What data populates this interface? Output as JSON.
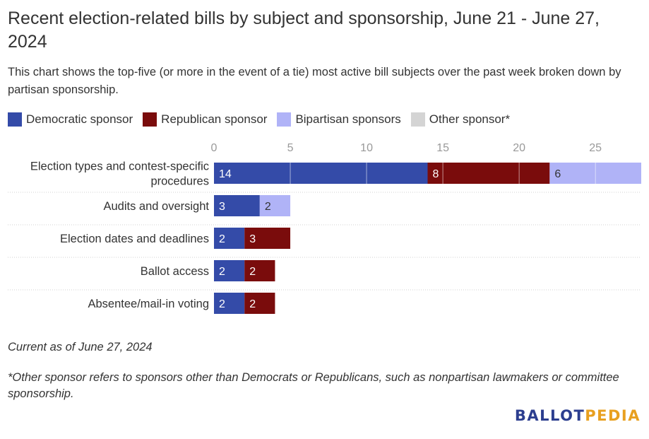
{
  "title": "Recent election-related bills by subject and sponsorship, June 21 - June 27, 2024",
  "subtitle": "This chart shows the top-five (or more in the event of a tie) most active bill subjects over the past week broken down by partisan sponsorship.",
  "legend": [
    {
      "label": "Democratic sponsor",
      "color": "#344ba8"
    },
    {
      "label": "Republican sponsor",
      "color": "#7a0c0c"
    },
    {
      "label": "Bipartisan sponsors",
      "color": "#b0b3f7"
    },
    {
      "label": "Other sponsor*",
      "color": "#d4d4d4"
    }
  ],
  "notes": {
    "current_as_of": "Current as of June 27, 2024",
    "footnote": "*Other sponsor refers to sponsors other than Democrats or Republicans, such as nonpartisan lawmakers or committee sponsorship."
  },
  "logo": {
    "part1": "BALLOT",
    "part2": "PEDIA",
    "color1": "#2c3e8f",
    "color2": "#e8a020"
  },
  "chart_data": {
    "type": "bar",
    "orientation": "horizontal",
    "stacked": true,
    "categories": [
      "Election types and contest-specific procedures",
      "Audits and oversight",
      "Election dates and deadlines",
      "Ballot access",
      "Absentee/mail-in voting"
    ],
    "category_lines": [
      [
        "Election types and contest-specific",
        "procedures"
      ],
      [
        "Audits and oversight"
      ],
      [
        "Election dates and deadlines"
      ],
      [
        "Ballot access"
      ],
      [
        "Absentee/mail-in voting"
      ]
    ],
    "series": [
      {
        "name": "Democratic sponsor",
        "color": "#344ba8",
        "values": [
          14,
          3,
          2,
          2,
          2
        ]
      },
      {
        "name": "Republican sponsor",
        "color": "#7a0c0c",
        "values": [
          8,
          0,
          3,
          2,
          2
        ]
      },
      {
        "name": "Bipartisan sponsors",
        "color": "#b0b3f7",
        "values": [
          6,
          2,
          0,
          0,
          0
        ]
      },
      {
        "name": "Other sponsor*",
        "color": "#d4d4d4",
        "values": [
          0,
          0,
          0,
          0,
          0
        ]
      }
    ],
    "x_ticks": [
      0,
      5,
      10,
      15,
      20,
      25
    ],
    "xlim": [
      0,
      28
    ],
    "grid": true,
    "legend_position": "top"
  }
}
